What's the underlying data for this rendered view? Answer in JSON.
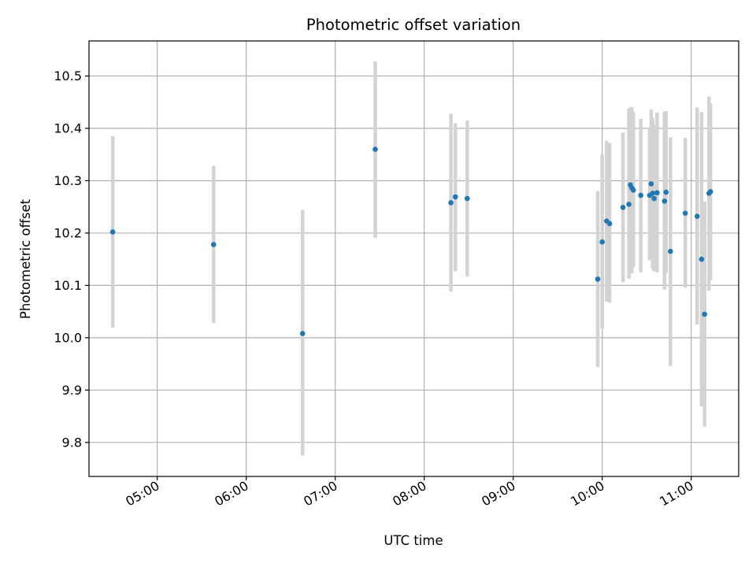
{
  "chart_data": {
    "type": "scatter",
    "title": "Photometric offset variation",
    "xlabel": "UTC time",
    "ylabel": "Photometric offset",
    "x_is_time": true,
    "xlim": [
      "04:14",
      "11:32"
    ],
    "ylim": [
      9.735,
      10.567
    ],
    "grid": true,
    "x_ticks": [
      "05:00",
      "06:00",
      "07:00",
      "08:00",
      "09:00",
      "10:00",
      "11:00"
    ],
    "y_ticks": [
      "9.8",
      "9.9",
      "10.0",
      "10.1",
      "10.2",
      "10.3",
      "10.4",
      "10.5"
    ],
    "marker_color": "#1f77b4",
    "errorbar_color": "#d3d3d3",
    "points": [
      {
        "x": "04:30",
        "y": 10.202,
        "ylow": 10.019,
        "yhigh": 10.385
      },
      {
        "x": "05:38",
        "y": 10.178,
        "ylow": 10.028,
        "yhigh": 10.328
      },
      {
        "x": "06:38",
        "y": 10.008,
        "ylow": 9.775,
        "yhigh": 10.244
      },
      {
        "x": "07:27",
        "y": 10.36,
        "ylow": 10.191,
        "yhigh": 10.528
      },
      {
        "x": "08:18",
        "y": 10.258,
        "ylow": 10.088,
        "yhigh": 10.428
      },
      {
        "x": "08:21",
        "y": 10.269,
        "ylow": 10.127,
        "yhigh": 10.41
      },
      {
        "x": "08:29",
        "y": 10.266,
        "ylow": 10.117,
        "yhigh": 10.415
      },
      {
        "x": "09:57",
        "y": 10.112,
        "ylow": 9.944,
        "yhigh": 10.28
      },
      {
        "x": "10:00",
        "y": 10.183,
        "ylow": 10.017,
        "yhigh": 10.35
      },
      {
        "x": "10:03",
        "y": 10.223,
        "ylow": 10.069,
        "yhigh": 10.376
      },
      {
        "x": "10:05",
        "y": 10.218,
        "ylow": 10.067,
        "yhigh": 10.372
      },
      {
        "x": "10:14",
        "y": 10.249,
        "ylow": 10.106,
        "yhigh": 10.392
      },
      {
        "x": "10:18",
        "y": 10.255,
        "ylow": 10.113,
        "yhigh": 10.438
      },
      {
        "x": "10:19",
        "y": 10.292,
        "ylow": 10.144,
        "yhigh": 10.44
      },
      {
        "x": "10:20",
        "y": 10.286,
        "ylow": 10.123,
        "yhigh": 10.441
      },
      {
        "x": "10:21",
        "y": 10.282,
        "ylow": 10.135,
        "yhigh": 10.431
      },
      {
        "x": "10:26",
        "y": 10.272,
        "ylow": 10.125,
        "yhigh": 10.418
      },
      {
        "x": "10:32",
        "y": 10.272,
        "ylow": 10.148,
        "yhigh": 10.398
      },
      {
        "x": "10:33",
        "y": 10.294,
        "ylow": 10.151,
        "yhigh": 10.436
      },
      {
        "x": "10:34",
        "y": 10.276,
        "ylow": 10.131,
        "yhigh": 10.42
      },
      {
        "x": "10:35",
        "y": 10.266,
        "ylow": 10.127,
        "yhigh": 10.406
      },
      {
        "x": "10:37",
        "y": 10.277,
        "ylow": 10.125,
        "yhigh": 10.43
      },
      {
        "x": "10:42",
        "y": 10.261,
        "ylow": 10.092,
        "yhigh": 10.432
      },
      {
        "x": "10:43",
        "y": 10.278,
        "ylow": 10.123,
        "yhigh": 10.433
      },
      {
        "x": "10:46",
        "y": 10.165,
        "ylow": 9.946,
        "yhigh": 10.383
      },
      {
        "x": "10:56",
        "y": 10.238,
        "ylow": 10.096,
        "yhigh": 10.382
      },
      {
        "x": "11:04",
        "y": 10.232,
        "ylow": 10.025,
        "yhigh": 10.44
      },
      {
        "x": "11:07",
        "y": 10.15,
        "ylow": 9.869,
        "yhigh": 10.431
      },
      {
        "x": "11:09",
        "y": 10.045,
        "ylow": 9.83,
        "yhigh": 10.26
      },
      {
        "x": "11:12",
        "y": 10.276,
        "ylow": 10.09,
        "yhigh": 10.461
      },
      {
        "x": "11:13",
        "y": 10.279,
        "ylow": 10.11,
        "yhigh": 10.448
      }
    ]
  }
}
